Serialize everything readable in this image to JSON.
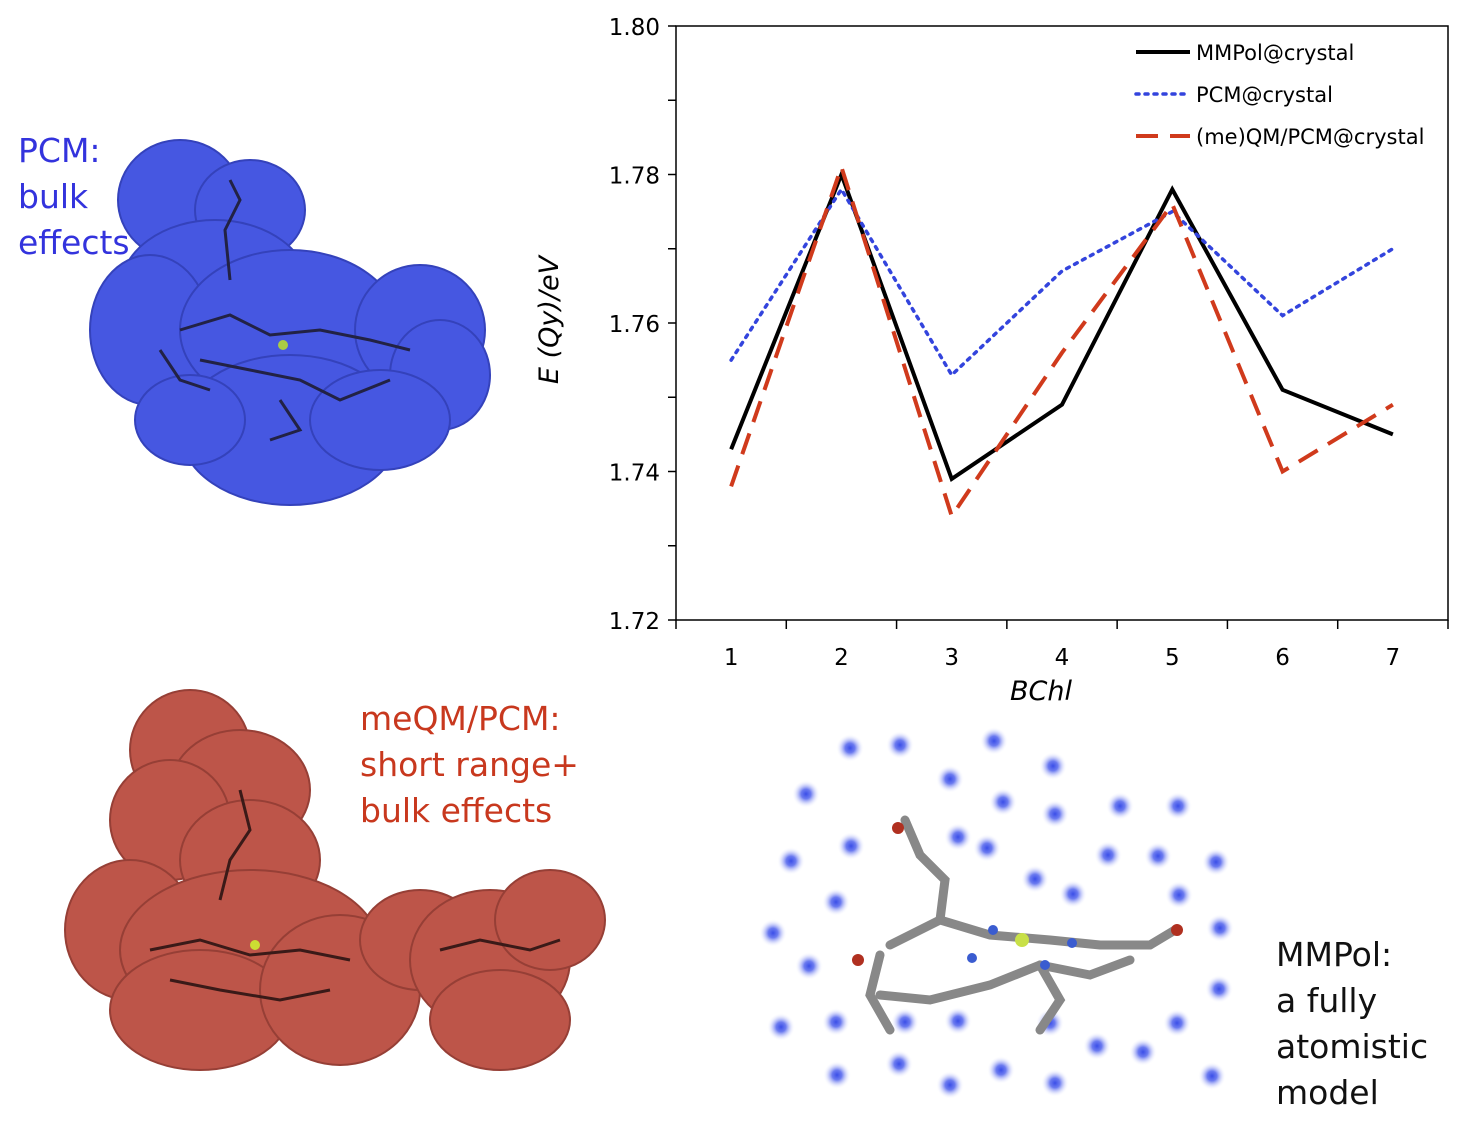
{
  "annotations": {
    "pcm": [
      "PCM:",
      "bulk",
      "effects"
    ],
    "meqm": [
      "meQM/PCM:",
      "short range+",
      "bulk effects"
    ],
    "mmpol": [
      "MMPol:",
      "a fully",
      "atomistic",
      "model"
    ]
  },
  "colors": {
    "pcm_blue": "#3333dd",
    "meqm_red": "#c8381e",
    "mmpol_black": "#111111",
    "surface_blue": "#3d4fe0",
    "surface_red": "#b8473a",
    "dot_blue": "#7f8cf0"
  },
  "chart_data": {
    "type": "line",
    "title": "",
    "xlabel": "BChl",
    "ylabel": "E (Qy)/eV",
    "categories": [
      "1",
      "2",
      "3",
      "4",
      "5",
      "6",
      "7"
    ],
    "ylim": [
      1.72,
      1.8
    ],
    "yticks": [
      "1.72",
      "1.74",
      "1.76",
      "1.78",
      "1.80"
    ],
    "legend_position": "top-right",
    "series": [
      {
        "name": "MMPol@crystal",
        "style": "solid",
        "color": "#000000",
        "values": [
          1.743,
          1.78,
          1.739,
          1.749,
          1.778,
          1.751,
          1.745
        ]
      },
      {
        "name": "PCM@crystal",
        "style": "dotted",
        "color": "#3344dd",
        "values": [
          1.755,
          1.778,
          1.753,
          1.767,
          1.775,
          1.761,
          1.77
        ]
      },
      {
        "name": "(me)QM/PCM@crystal",
        "style": "dashed",
        "color": "#d03a1c",
        "values": [
          1.738,
          1.781,
          1.734,
          1.756,
          1.776,
          1.74,
          1.749
        ]
      }
    ]
  }
}
